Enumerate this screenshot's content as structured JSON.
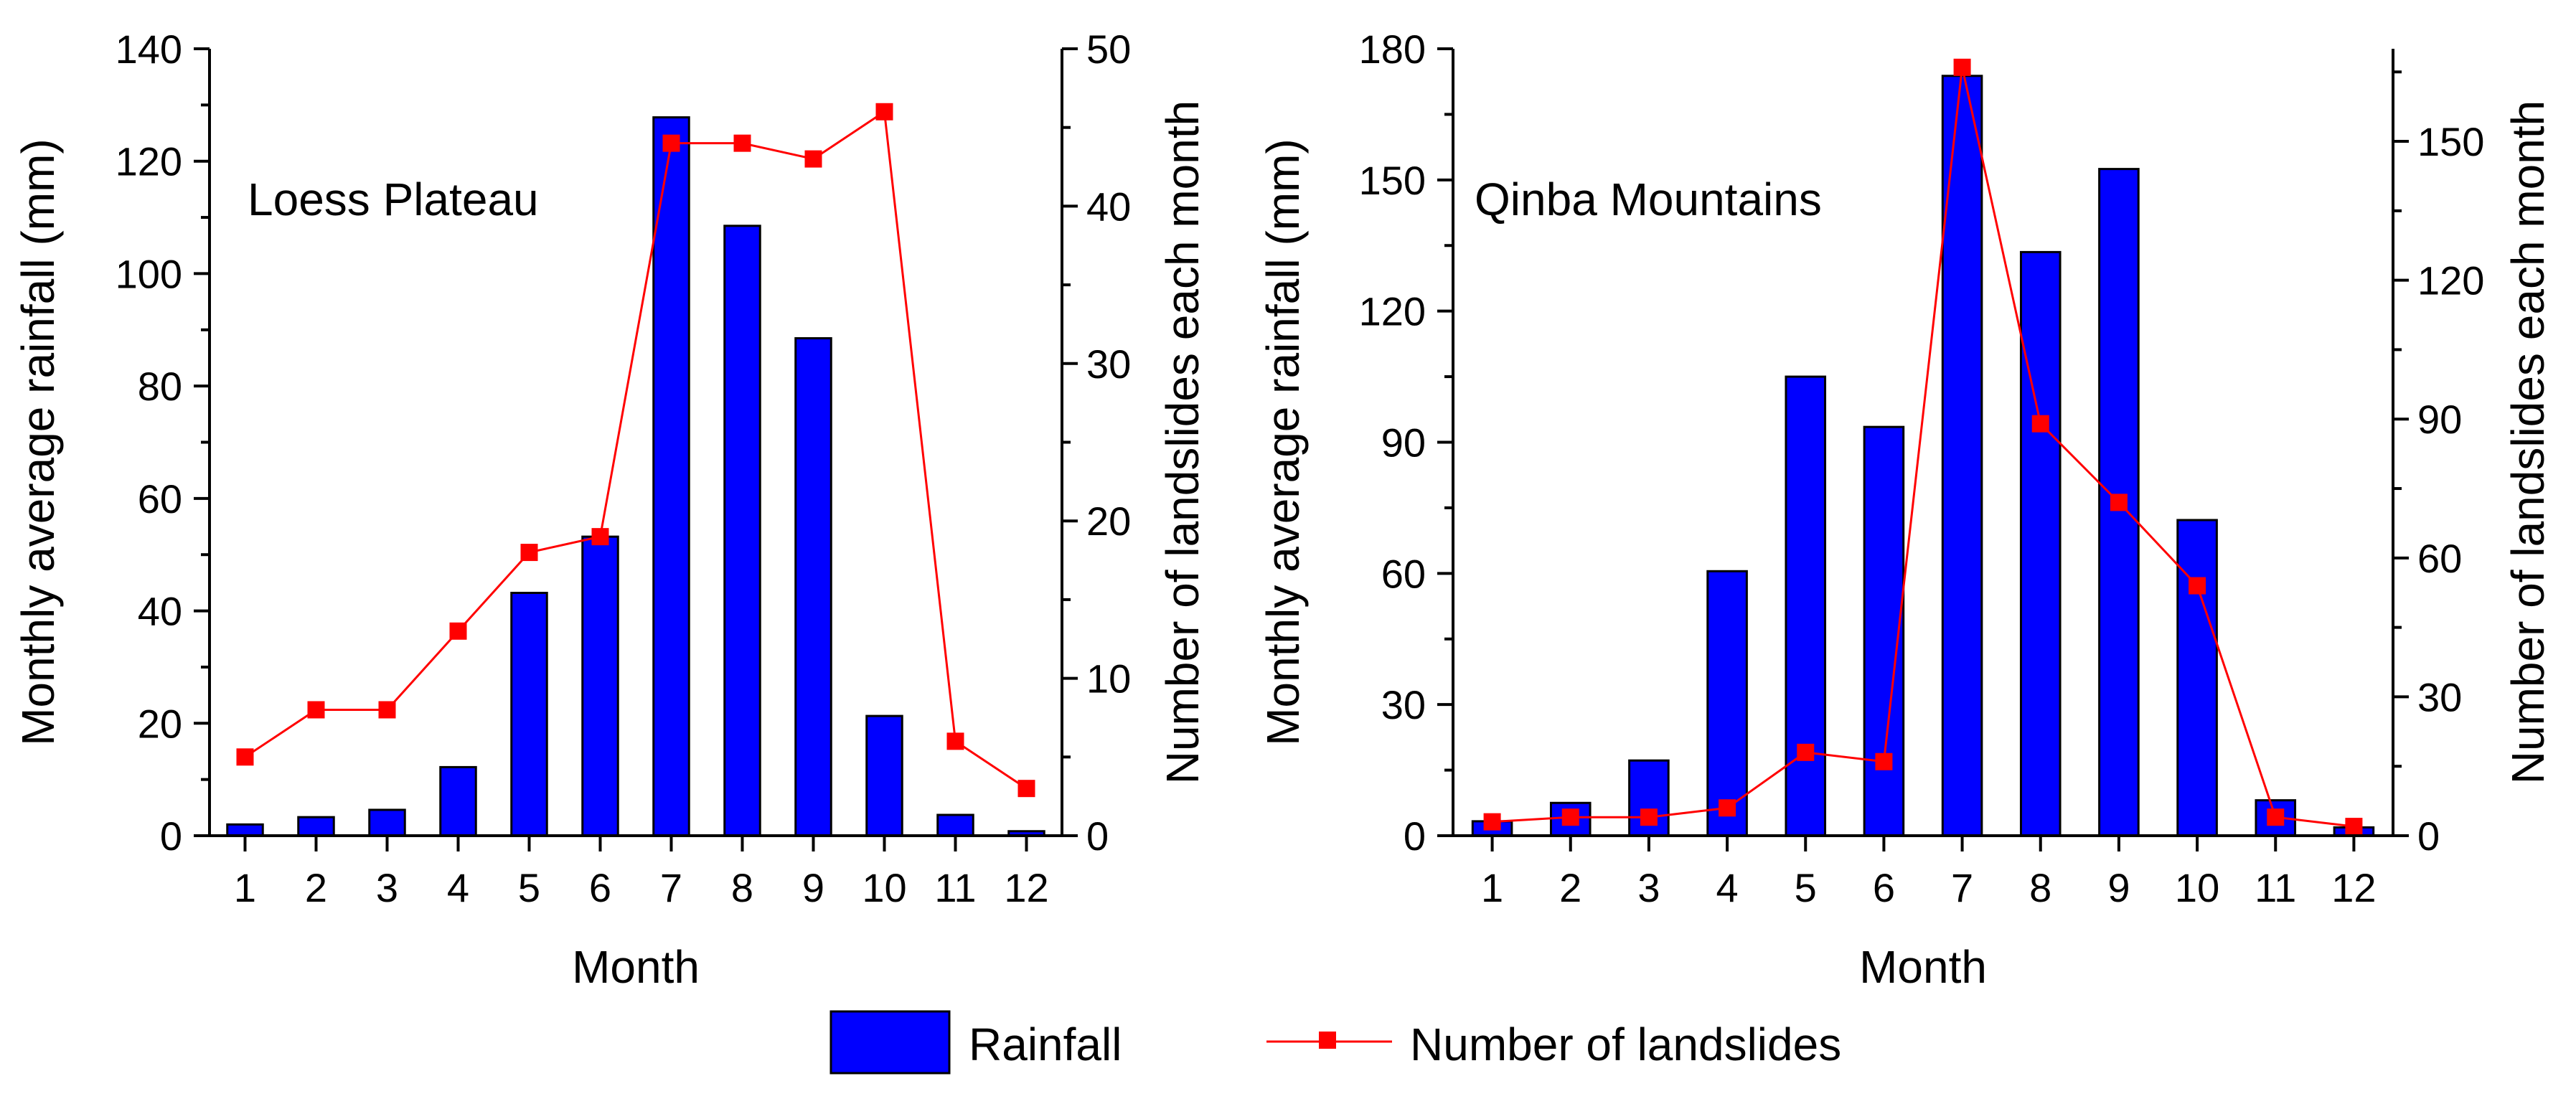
{
  "legend": {
    "rainfall_label": "Rainfall",
    "landslides_label": "Number of landslides"
  },
  "colors": {
    "bar_fill": "#0000ff",
    "line_color": "#ff0000",
    "axis": "#000000"
  },
  "chart_data": [
    {
      "type": "bar",
      "title": "Loess Plateau",
      "xlabel": "Month",
      "ylabel": "Monthly average rainfall (mm)",
      "y2label": "Number of landslides each month",
      "categories": [
        "1",
        "2",
        "3",
        "4",
        "5",
        "6",
        "7",
        "8",
        "9",
        "10",
        "11",
        "12"
      ],
      "ylim": [
        0,
        140
      ],
      "yticks": [
        0,
        20,
        40,
        60,
        80,
        100,
        120,
        140
      ],
      "y2lim": [
        0,
        50
      ],
      "y2ticks": [
        0,
        10,
        20,
        30,
        40,
        50
      ],
      "series": [
        {
          "name": "Rainfall",
          "type": "bar",
          "axis": "left",
          "values": [
            2,
            3.3,
            4.6,
            12.2,
            43.2,
            53.2,
            127.8,
            108.5,
            88.5,
            21.3,
            3.7,
            0.8
          ]
        },
        {
          "name": "Number of landslides",
          "type": "line",
          "axis": "right",
          "values": [
            5,
            8,
            8,
            13,
            18,
            19,
            44,
            44,
            43,
            46,
            6,
            3
          ]
        }
      ]
    },
    {
      "type": "bar",
      "title": "Qinba Mountains",
      "xlabel": "Month",
      "ylabel": "Monthly average rainfall (mm)",
      "y2label": "Number of landslides each month",
      "categories": [
        "1",
        "2",
        "3",
        "4",
        "5",
        "6",
        "7",
        "8",
        "9",
        "10",
        "11",
        "12"
      ],
      "ylim": [
        0,
        180
      ],
      "yticks": [
        0,
        30,
        60,
        90,
        120,
        150,
        180
      ],
      "y2lim": [
        0,
        170
      ],
      "y2ticks": [
        0,
        30,
        60,
        90,
        120,
        150
      ],
      "series": [
        {
          "name": "Rainfall",
          "type": "bar",
          "axis": "left",
          "values": [
            3.3,
            7.5,
            17.2,
            60.5,
            105,
            93.5,
            173.8,
            133.5,
            152.5,
            72.2,
            8.1,
            1.9
          ]
        },
        {
          "name": "Number of landslides",
          "type": "line",
          "axis": "right",
          "values": [
            3,
            4,
            4,
            6,
            18,
            16,
            166,
            89,
            72,
            54,
            4,
            2
          ]
        }
      ]
    }
  ]
}
